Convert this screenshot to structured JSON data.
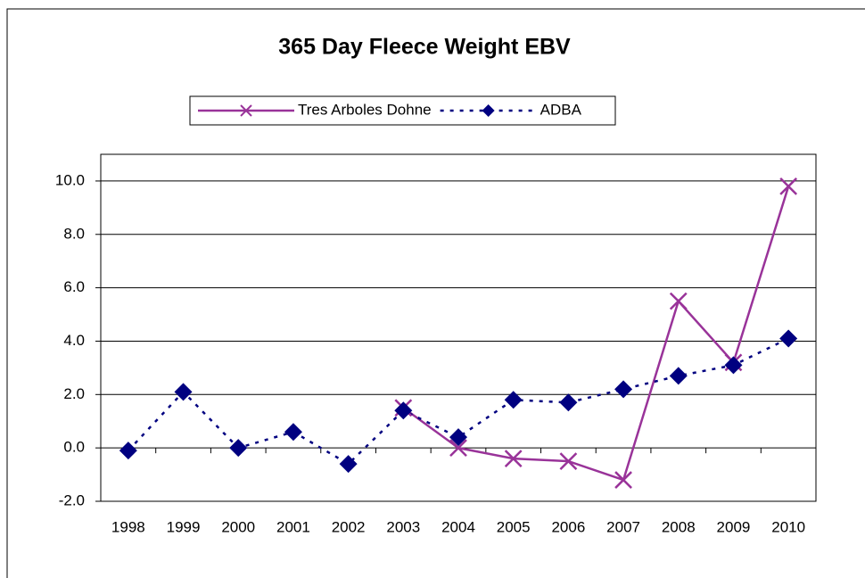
{
  "chart_data": {
    "type": "line",
    "title": "365 Day Fleece Weight EBV",
    "categories": [
      "1998",
      "1999",
      "2000",
      "2001",
      "2002",
      "2003",
      "2004",
      "2005",
      "2006",
      "2007",
      "2008",
      "2009",
      "2010"
    ],
    "series": [
      {
        "name": "Tres Arboles Dohne",
        "color": "#993399",
        "values": [
          null,
          null,
          null,
          null,
          null,
          1.5,
          0.0,
          -0.4,
          -0.5,
          -1.2,
          5.5,
          3.2,
          9.8
        ]
      },
      {
        "name": "ADBA",
        "color": "#000080",
        "values": [
          -0.1,
          2.1,
          0.0,
          0.6,
          -0.6,
          1.4,
          0.4,
          1.8,
          1.7,
          2.2,
          2.7,
          3.1,
          4.1
        ]
      }
    ],
    "ylim": [
      -2,
      11
    ],
    "yticks": [
      {
        "value": -2,
        "label": "-2.0"
      },
      {
        "value": 0,
        "label": "0.0"
      },
      {
        "value": 2,
        "label": "2.0"
      },
      {
        "value": 4,
        "label": "4.0"
      },
      {
        "value": 6,
        "label": "6.0"
      },
      {
        "value": 8,
        "label": "8.0"
      },
      {
        "value": 10,
        "label": "10.0"
      }
    ],
    "grid": true
  }
}
